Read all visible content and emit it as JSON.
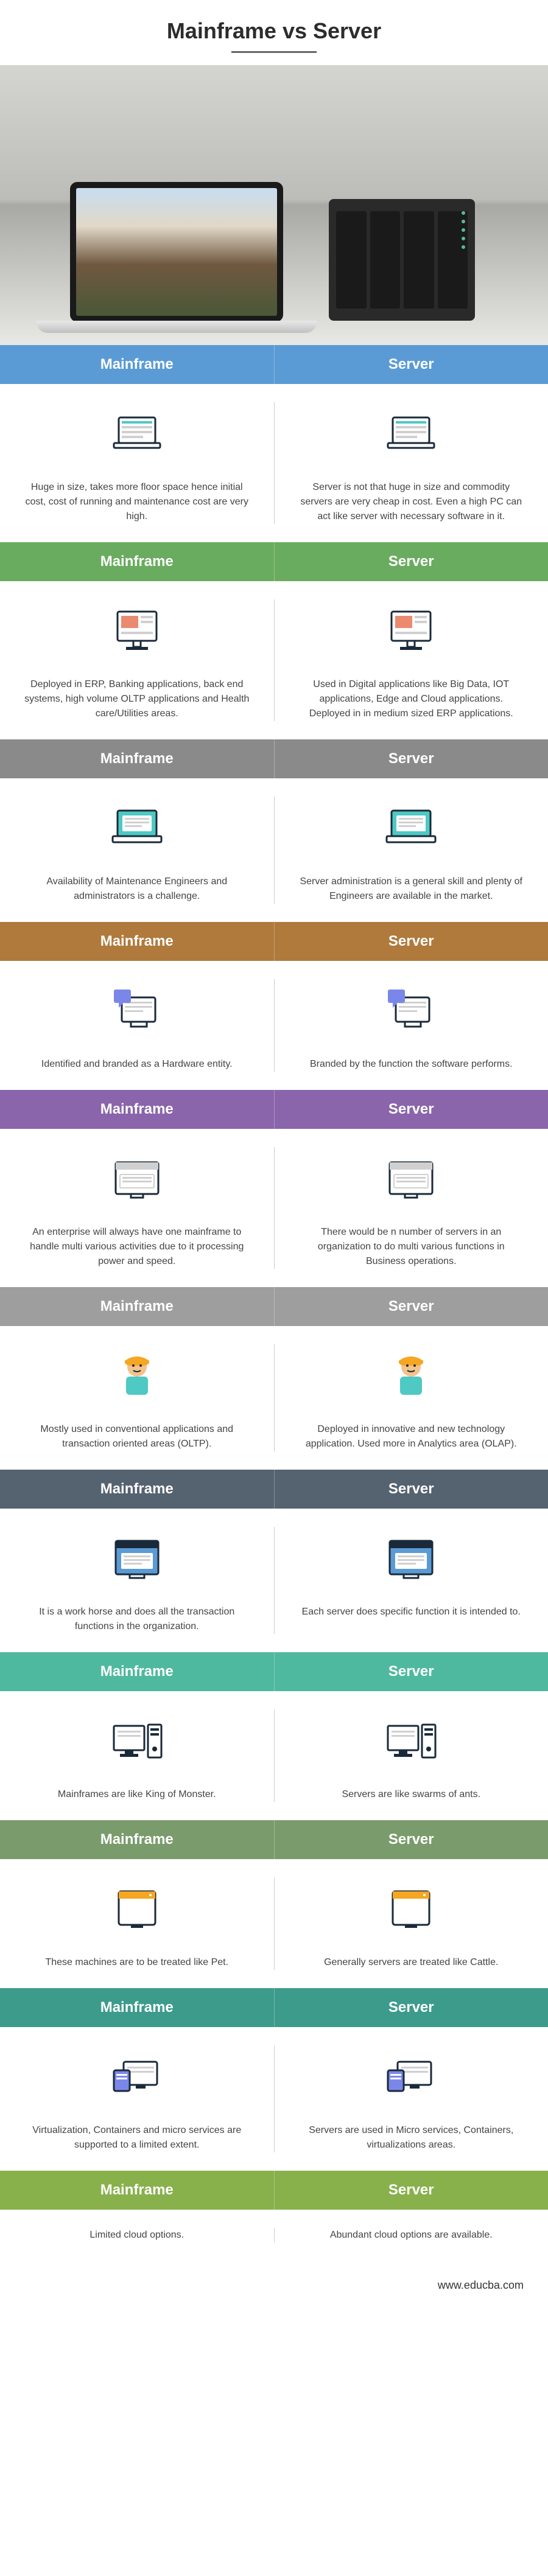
{
  "title": "Mainframe vs Server",
  "footer": "www.educba.com",
  "headers": {
    "left": "Mainframe",
    "right": "Server"
  },
  "sections": [
    {
      "color": "#5b9bd5",
      "left": "Huge in size, takes more floor space hence initial cost, cost of running and maintenance cost are very high.",
      "right": "Server is not that huge in size and commodity servers are very cheap in cost. Even a high PC can act like server with necessary software in it."
    },
    {
      "color": "#6aac5f",
      "left": "Deployed in ERP, Banking applications, back end systems, high volume OLTP applications and Health care/Utilities areas.",
      "right": "Used in Digital applications like Big Data, IOT applications, Edge and Cloud applications. Deployed in in medium sized ERP applications."
    },
    {
      "color": "#8a8a8a",
      "left": "Availability of Maintenance Engineers and administrators is a challenge.",
      "right": "Server administration is a general skill and plenty of Engineers are available in the market."
    },
    {
      "color": "#b07a3c",
      "left": "Identified and branded as a Hardware entity.",
      "right": "Branded by the function the software performs."
    },
    {
      "color": "#8a65ab",
      "left": "An enterprise will always have one mainframe to handle multi various activities due to it processing power and speed.",
      "right": "There would be n number of servers in an organization to do multi various functions in Business operations."
    },
    {
      "color": "#9e9e9e",
      "left": "Mostly used in conventional applications and transaction oriented areas (OLTP).",
      "right": "Deployed in innovative and new technology application. Used more in Analytics area (OLAP)."
    },
    {
      "color": "#556270",
      "left": "It is a work horse and does all the transaction functions in the organization.",
      "right": "Each server does specific function it is intended to."
    },
    {
      "color": "#4fb99f",
      "left": "Mainframes are like King of Monster.",
      "right": "Servers are like swarms of ants."
    },
    {
      "color": "#7a9b6c",
      "left": "These machines are to be treated like Pet.",
      "right": "Generally servers are treated like Cattle."
    },
    {
      "color": "#3d9b8c",
      "left": "Virtualization, Containers and micro services are supported to a limited extent.",
      "right": "Servers are used in Micro services, Containers, virtualizations areas."
    },
    {
      "color": "#88b04b",
      "left": "Limited cloud options.",
      "right": "Abundant cloud options are available."
    }
  ],
  "icons": [
    "laptop",
    "monitor",
    "laptop-open",
    "device-chat",
    "browser-window",
    "person",
    "window",
    "pc-tower",
    "tablet",
    "multi-device",
    "none"
  ]
}
